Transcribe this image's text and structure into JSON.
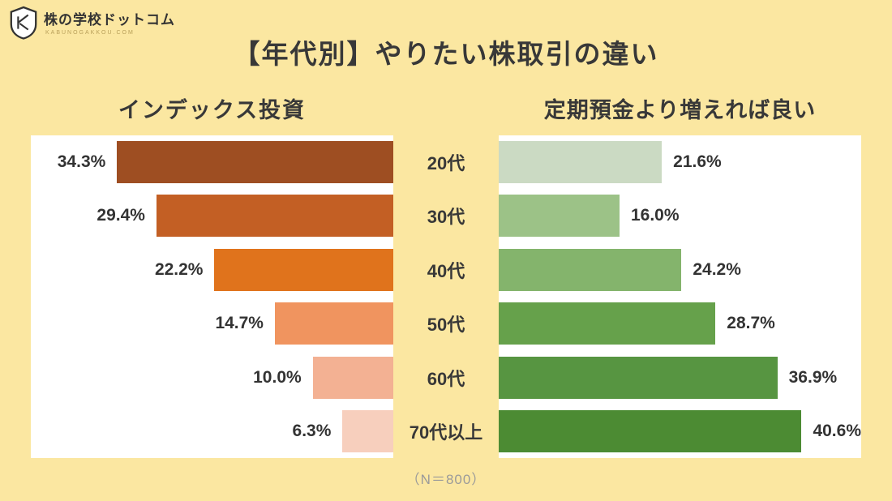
{
  "logo": {
    "brand": "株の学校ドットコム",
    "sub": "KABUNOGAKKOU.COM",
    "monogram": "KG"
  },
  "title": "【年代別】やりたい株取引の違い",
  "footnote": "（N＝800）",
  "colors": {
    "background": "#FBE7A1",
    "panel": "#FFFFFF",
    "title_text": "#383838",
    "footnote_text": "#9A9A9A"
  },
  "categories": [
    "20代",
    "30代",
    "40代",
    "50代",
    "60代",
    "70代以上"
  ],
  "chart_data": [
    {
      "type": "bar",
      "title": "インデックス投資",
      "orientation": "horizontal-right-aligned",
      "categories": [
        "20代",
        "30代",
        "40代",
        "50代",
        "60代",
        "70代以上"
      ],
      "values": [
        34.3,
        29.4,
        22.2,
        14.7,
        10.0,
        6.3
      ],
      "data_labels": [
        "34.3%",
        "29.4%",
        "22.2%",
        "14.7%",
        "10.0%",
        "6.3%"
      ],
      "xlim": [
        0,
        45
      ],
      "grid": false,
      "legend": "none",
      "bar_colors": [
        "#9E4E22",
        "#C35F24",
        "#E0731C",
        "#F0945F",
        "#F3B193",
        "#F7CFBD"
      ]
    },
    {
      "type": "bar",
      "title": "定期預金より増えれば良い",
      "orientation": "horizontal-left-aligned",
      "categories": [
        "20代",
        "30代",
        "40代",
        "50代",
        "60代",
        "70代以上"
      ],
      "values": [
        21.6,
        16.0,
        24.2,
        28.7,
        36.9,
        40.6
      ],
      "data_labels": [
        "21.6%",
        "16.0%",
        "24.2%",
        "28.7%",
        "36.9%",
        "40.6%"
      ],
      "xlim": [
        0,
        48
      ],
      "grid": false,
      "legend": "none",
      "bar_colors": [
        "#CBDAC3",
        "#9CC287",
        "#84B46C",
        "#66A14B",
        "#579541",
        "#4C8B33"
      ]
    }
  ]
}
